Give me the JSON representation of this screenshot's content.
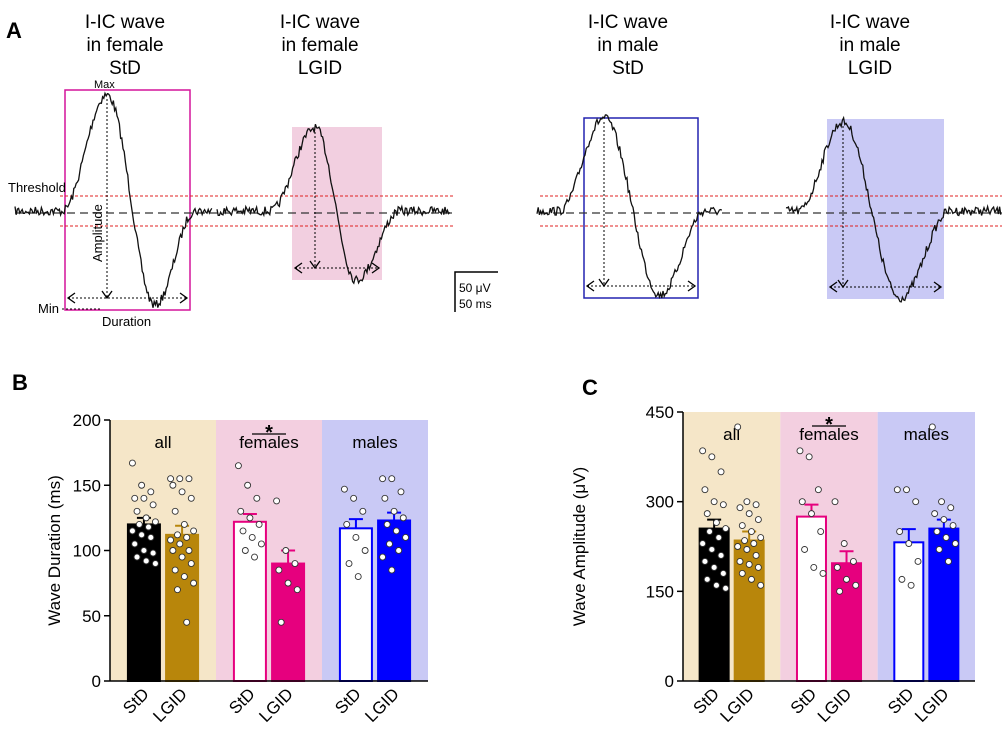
{
  "panel_a": {
    "panel_label": "A",
    "titles": [
      [
        "I-IC wave",
        "in female",
        "StD"
      ],
      [
        "I-IC wave",
        "in female",
        "LGID"
      ],
      [
        "I-IC wave",
        "in male",
        "StD"
      ],
      [
        "I-IC wave",
        "in male",
        "LGID"
      ]
    ],
    "annotations": {
      "max": "Max",
      "threshold": "Threshold",
      "amplitude": "Amplitude",
      "min": "Min",
      "duration": "Duration",
      "scale_v": "50 μV",
      "scale_t": "50 ms"
    }
  },
  "chart_data": [
    {
      "type": "bar",
      "panel_label": "B",
      "ylabel": "Wave Duration (ms)",
      "ylim": [
        0,
        200
      ],
      "yticks": [
        0,
        50,
        100,
        150,
        200
      ],
      "groups": [
        {
          "name": "all",
          "color": "#f5e6c8"
        },
        {
          "name": "females",
          "color": "#f3cfe0"
        },
        {
          "name": "males",
          "color": "#c9c9f5"
        }
      ],
      "significance": {
        "group": 1,
        "label": "*"
      },
      "categories": [
        "StD",
        "LGID",
        "StD",
        "LGID",
        "StD",
        "LGID"
      ],
      "values": [
        120,
        112,
        122,
        90,
        117,
        123
      ],
      "errors": [
        5,
        7,
        6,
        10,
        7,
        6
      ],
      "fill_colors": [
        "#000000",
        "#b8860b",
        "#ffffff",
        "#e6007e",
        "#ffffff",
        "#0000ff"
      ],
      "edge_colors": [
        "#000000",
        "#b8860b",
        "#e6007e",
        "#e6007e",
        "#0000ff",
        "#0000ff"
      ],
      "points": [
        [
          167,
          150,
          145,
          140,
          140,
          135,
          130,
          125,
          122,
          120,
          118,
          115,
          112,
          110,
          105,
          100,
          98,
          95,
          92,
          90
        ],
        [
          155,
          155,
          155,
          150,
          145,
          140,
          130,
          120,
          115,
          112,
          110,
          108,
          105,
          100,
          100,
          95,
          90,
          85,
          80,
          75,
          70,
          45
        ],
        [
          165,
          150,
          140,
          130,
          125,
          120,
          115,
          110,
          105,
          100,
          95
        ],
        [
          138,
          100,
          90,
          85,
          75,
          70,
          45
        ],
        [
          147,
          140,
          130,
          120,
          110,
          100,
          90,
          80
        ],
        [
          155,
          155,
          145,
          140,
          130,
          125,
          120,
          115,
          110,
          105,
          100,
          95,
          85
        ]
      ]
    },
    {
      "type": "bar",
      "panel_label": "C",
      "ylabel": "Wave Amplitude (μV)",
      "ylim": [
        0,
        450
      ],
      "yticks": [
        0,
        150,
        300,
        450
      ],
      "groups": [
        {
          "name": "all",
          "color": "#f5e6c8"
        },
        {
          "name": "females",
          "color": "#f3cfe0"
        },
        {
          "name": "males",
          "color": "#c9c9f5"
        }
      ],
      "significance": {
        "group": 1,
        "label": "*"
      },
      "categories": [
        "StD",
        "LGID",
        "StD",
        "LGID",
        "StD",
        "LGID"
      ],
      "values": [
        255,
        235,
        275,
        197,
        232,
        255
      ],
      "errors": [
        15,
        15,
        20,
        20,
        22,
        15
      ],
      "fill_colors": [
        "#000000",
        "#b8860b",
        "#ffffff",
        "#e6007e",
        "#ffffff",
        "#0000ff"
      ],
      "edge_colors": [
        "#000000",
        "#b8860b",
        "#e6007e",
        "#e6007e",
        "#0000ff",
        "#0000ff"
      ],
      "points": [
        [
          385,
          375,
          350,
          320,
          300,
          295,
          280,
          265,
          255,
          250,
          240,
          230,
          220,
          210,
          200,
          190,
          180,
          170,
          160,
          155
        ],
        [
          425,
          300,
          295,
          290,
          280,
          270,
          260,
          250,
          240,
          235,
          230,
          225,
          220,
          210,
          200,
          195,
          190,
          180,
          170,
          160
        ],
        [
          385,
          375,
          320,
          300,
          280,
          250,
          220,
          190,
          180
        ],
        [
          300,
          230,
          200,
          190,
          170,
          160,
          150
        ],
        [
          320,
          320,
          300,
          250,
          230,
          200,
          170,
          160
        ],
        [
          425,
          300,
          290,
          280,
          270,
          260,
          250,
          240,
          230,
          220,
          200
        ]
      ]
    }
  ]
}
